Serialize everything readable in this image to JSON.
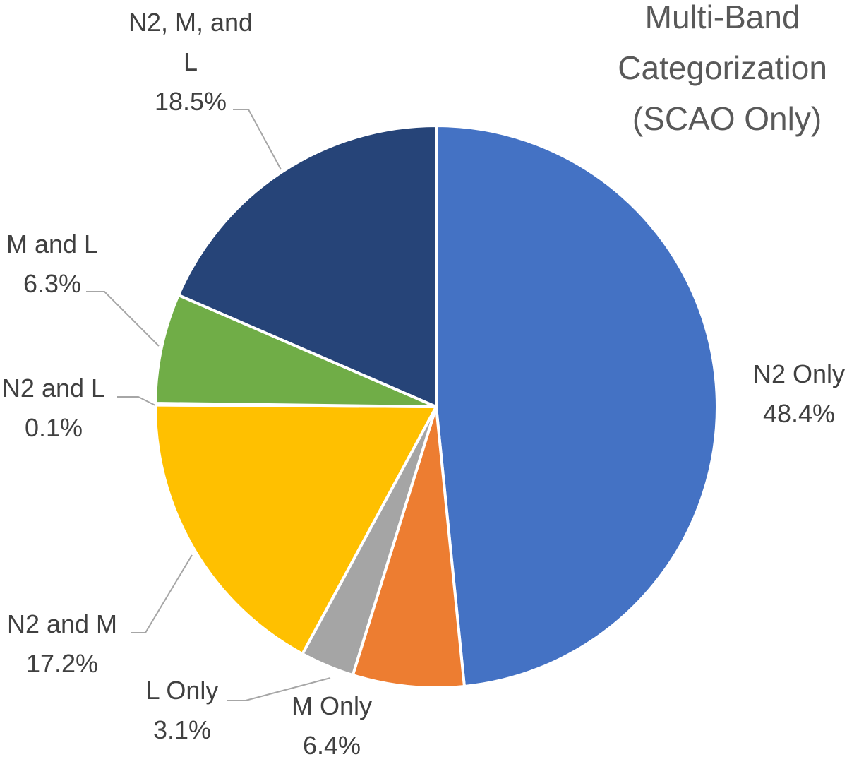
{
  "chart_data": {
    "type": "pie",
    "title_lines": [
      "Multi-Band",
      "Categorization",
      "(SCAO Only)"
    ],
    "slices": [
      {
        "label": "N2 Only",
        "display_label": [
          "N2 Only"
        ],
        "value": 48.4,
        "value_label": "48.4%",
        "color": "#4472C4"
      },
      {
        "label": "M Only",
        "display_label": [
          "M Only"
        ],
        "value": 6.4,
        "value_label": "6.4%",
        "color": "#ED7D31"
      },
      {
        "label": "L Only",
        "display_label": [
          "L Only"
        ],
        "value": 3.1,
        "value_label": "3.1%",
        "color": "#A5A5A5"
      },
      {
        "label": "N2 and M",
        "display_label": [
          "N2 and M"
        ],
        "value": 17.2,
        "value_label": "17.2%",
        "color": "#FFC000"
      },
      {
        "label": "N2 and L",
        "display_label": [
          "N2 and L"
        ],
        "value": 0.1,
        "value_label": "0.1%",
        "color": "#5B9BD5"
      },
      {
        "label": "M and L",
        "display_label": [
          "M and L"
        ],
        "value": 6.3,
        "value_label": "6.3%",
        "color": "#70AD47"
      },
      {
        "label": "N2, M, and L",
        "display_label": [
          "N2, M, and",
          "L"
        ],
        "value": 18.5,
        "value_label": "18.5%",
        "color": "#264478"
      }
    ]
  }
}
